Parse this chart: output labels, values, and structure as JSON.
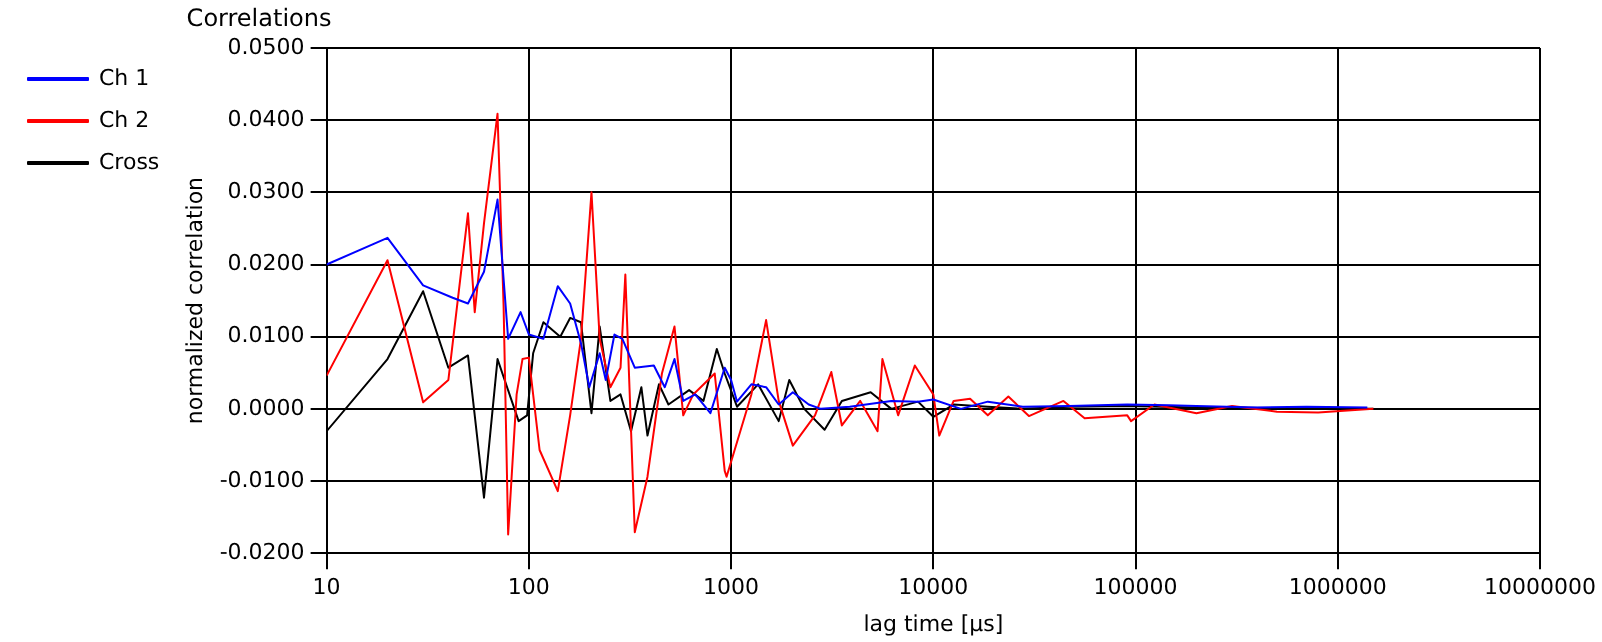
{
  "chart_data": {
    "type": "line",
    "title": "Correlations",
    "xlabel": "lag time [µs]",
    "ylabel": "normalized correlation",
    "log": "x",
    "grid": true,
    "legend": "top left",
    "xlim": [
      10,
      10000000
    ],
    "xticks": [
      10,
      100,
      1000,
      10000,
      100000,
      1000000,
      10000000
    ],
    "ylim": [
      -0.02,
      0.05
    ],
    "yticks": [
      {
        "value": -0.02,
        "label": "-0.0200"
      },
      {
        "value": -0.01,
        "label": "-0.0100"
      },
      {
        "value": 0,
        "label": "0.0000"
      },
      {
        "value": 0.01,
        "label": "0.0100"
      },
      {
        "value": 0.02,
        "label": "0.0200"
      },
      {
        "value": 0.03,
        "label": "0.0300"
      },
      {
        "value": 0.04,
        "label": "0.0400"
      },
      {
        "value": 0.05,
        "label": "0.0500"
      }
    ],
    "series": [
      {
        "name": "Ch 1",
        "color": "#0000ff",
        "x": [
          10,
          20,
          30,
          42,
          50,
          60,
          70,
          79,
          91,
          100,
          118,
          139,
          160,
          181,
          199,
          224,
          240,
          265,
          290,
          334,
          415,
          470,
          525,
          580,
          665,
          790,
          930,
          1000,
          1070,
          1260,
          1490,
          1720,
          2020,
          2420,
          2780,
          3860,
          6200,
          8400,
          10000,
          13700,
          18600,
          27700,
          47000,
          91000,
          146000,
          200000,
          400000,
          700000,
          1400000
        ],
        "values": [
          0.02,
          0.0237,
          0.0171,
          0.0154,
          0.0146,
          0.019,
          0.029,
          0.0097,
          0.0134,
          0.0103,
          0.0097,
          0.017,
          0.0146,
          0.0091,
          0.003,
          0.0077,
          0.004,
          0.0103,
          0.0097,
          0.0057,
          0.006,
          0.003,
          0.0069,
          0.0011,
          0.002,
          -0.0006,
          0.0057,
          0.004,
          0.001,
          0.0034,
          0.003,
          0.0006,
          0.0023,
          0.0006,
          0,
          0.0003,
          0.0011,
          0.001,
          0.0013,
          0,
          0.001,
          0.0003,
          0.0004,
          0.0006,
          0.0005,
          0.0004,
          0.0002,
          0.0003,
          0.0002
        ]
      },
      {
        "name": "Ch 2",
        "color": "#ff0000",
        "x": [
          10,
          20,
          30,
          40,
          50,
          54,
          60,
          70,
          75,
          79,
          87,
          93,
          100,
          113,
          139,
          160,
          181,
          204,
          224,
          253,
          284,
          300,
          334,
          386,
          455,
          525,
          580,
          650,
          830,
          930,
          950,
          1260,
          1490,
          1720,
          2020,
          2600,
          3130,
          3530,
          4350,
          5300,
          5600,
          6700,
          8100,
          10000,
          10700,
          12600,
          15200,
          18600,
          23500,
          29700,
          44000,
          56000,
          91000,
          95000,
          124000,
          200000,
          300000,
          500000,
          800000,
          1500000
        ],
        "values": [
          0.0046,
          0.0206,
          0.0009,
          0.004,
          0.0271,
          0.0134,
          0.0257,
          0.0409,
          0.0143,
          -0.0174,
          0.002,
          0.0069,
          0.0071,
          -0.0057,
          -0.0114,
          -0.0009,
          0.0097,
          0.03,
          0.0097,
          0.003,
          0.0057,
          0.0186,
          -0.0171,
          -0.0094,
          0.0049,
          0.0114,
          -0.0009,
          0.002,
          0.0049,
          -0.0086,
          -0.0094,
          0.002,
          0.0123,
          0.0011,
          -0.0051,
          -0.0009,
          0.0051,
          -0.0023,
          0.0011,
          -0.0031,
          0.0069,
          -0.0009,
          0.006,
          0.002,
          -0.0037,
          0.0011,
          0.0014,
          -0.0009,
          0.0017,
          -0.001,
          0.0011,
          -0.0013,
          -0.0009,
          -0.0017,
          0.0006,
          -0.0006,
          0.0004,
          -0.0004,
          -0.0005,
          0
        ]
      },
      {
        "name": "Cross",
        "color": "#000000",
        "x": [
          10,
          20,
          30,
          40,
          50,
          60,
          70,
          89,
          98,
          105,
          118,
          143,
          160,
          181,
          204,
          224,
          253,
          284,
          320,
          360,
          386,
          440,
          490,
          620,
          730,
          850,
          930,
          1070,
          1360,
          1720,
          1940,
          2300,
          2900,
          3530,
          4900,
          6200,
          8400,
          10000,
          12600,
          18600,
          27700,
          47000,
          91000,
          200000,
          500000,
          1500000
        ],
        "values": [
          -0.0031,
          0.0069,
          0.0163,
          0.0057,
          0.0074,
          -0.0123,
          0.0069,
          -0.0017,
          -0.0009,
          0.0077,
          0.012,
          0.01,
          0.0126,
          0.012,
          -0.0006,
          0.0114,
          0.0011,
          0.002,
          -0.0031,
          0.003,
          -0.0037,
          0.0034,
          0.0006,
          0.0026,
          0.0011,
          0.0083,
          0.0049,
          0.0003,
          0.0034,
          -0.0017,
          0.004,
          0,
          -0.0029,
          0.0011,
          0.0023,
          0,
          0.001,
          -0.0011,
          0.0006,
          0.0003,
          0,
          0.0003,
          0.0004,
          0.0002,
          0.0001,
          0
        ]
      }
    ]
  }
}
